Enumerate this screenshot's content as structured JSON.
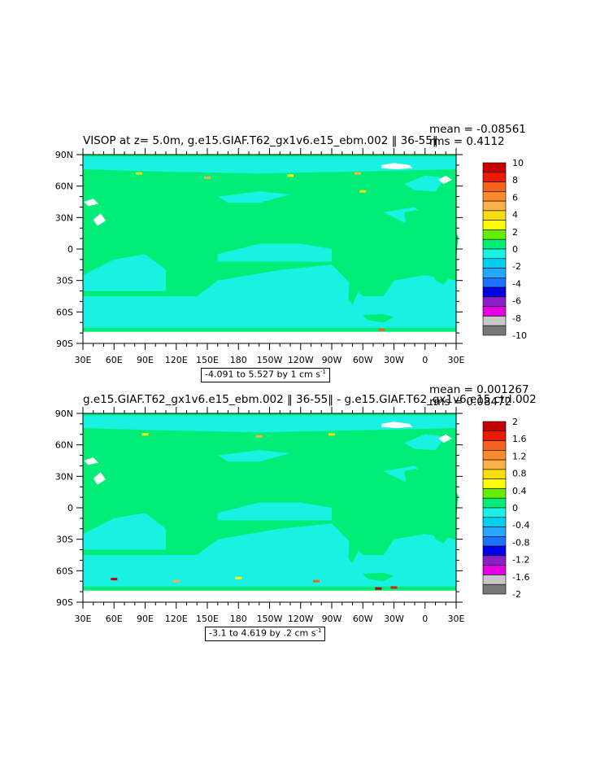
{
  "colors": {
    "ocean_main": "#00ee77",
    "ocean_low": "#19f2e3",
    "land": "#ffffff",
    "frame": "#000000"
  },
  "chart_data": [
    {
      "type": "heatmap",
      "title": "VISOP at z=    5.0m, g.e15.GIAF.T62_gx1v6.e15_ebm.002 ‖ 36-55‖",
      "stat_mean": "mean = -0.08561",
      "stat_rms": "rms = 0.4112",
      "range_text": "-4.091 to 5.527 by 1 cm s",
      "range_unit_exp": "-1",
      "x_tick_labels": [
        "30E",
        "60E",
        "90E",
        "120E",
        "150E",
        "180",
        "150W",
        "120W",
        "90W",
        "60W",
        "30W",
        "0",
        "30E"
      ],
      "y_tick_labels": [
        "90N",
        "60N",
        "30N",
        "0",
        "30S",
        "60S",
        "90S"
      ],
      "xlim": [
        30,
        390
      ],
      "ylim": [
        -90,
        90
      ],
      "colorbar": {
        "labels": [
          "10",
          "8",
          "6",
          "4",
          "2",
          "0",
          "-2",
          "-4",
          "-6",
          "-8",
          "-10"
        ],
        "colors": [
          "#c40000",
          "#ee1a00",
          "#f4621e",
          "#fb8a2e",
          "#fbb04a",
          "#f7dc10",
          "#ffff00",
          "#66ee00",
          "#00ee77",
          "#19f2e3",
          "#00d0f0",
          "#22a8ff",
          "#1a72ff",
          "#0000e6",
          "#8c1ec8",
          "#e600e6",
          "#c8c8c8",
          "#787878"
        ]
      }
    },
    {
      "type": "heatmap",
      "title": "g.e15.GIAF.T62_gx1v6.e15_ebm.002 ‖ 36-55‖ - g.e15.GIAF.T62_gx1v6.e15.ctrl.002",
      "stat_mean": "mean = 0.001267",
      "stat_rms": "rms = 0.08472",
      "range_text": "-3.1 to 4.619 by .2 cm s",
      "range_unit_exp": "-1",
      "x_tick_labels": [
        "30E",
        "60E",
        "90E",
        "120E",
        "150E",
        "180",
        "150W",
        "120W",
        "90W",
        "60W",
        "30W",
        "0",
        "30E"
      ],
      "y_tick_labels": [
        "90N",
        "60N",
        "30N",
        "0",
        "30S",
        "60S",
        "90S"
      ],
      "xlim": [
        30,
        390
      ],
      "ylim": [
        -90,
        90
      ],
      "colorbar": {
        "labels": [
          "2",
          "1.6",
          "1.2",
          "0.8",
          "0.4",
          "0",
          "-0.4",
          "-0.8",
          "-1.2",
          "-1.6",
          "-2"
        ],
        "colors": [
          "#c40000",
          "#ee1a00",
          "#f4621e",
          "#fb8a2e",
          "#fbb04a",
          "#f7dc10",
          "#ffff00",
          "#66ee00",
          "#00ee77",
          "#19f2e3",
          "#00d0f0",
          "#22a8ff",
          "#1a72ff",
          "#0000e6",
          "#8c1ec8",
          "#e600e6",
          "#c8c8c8",
          "#787878"
        ]
      }
    }
  ]
}
